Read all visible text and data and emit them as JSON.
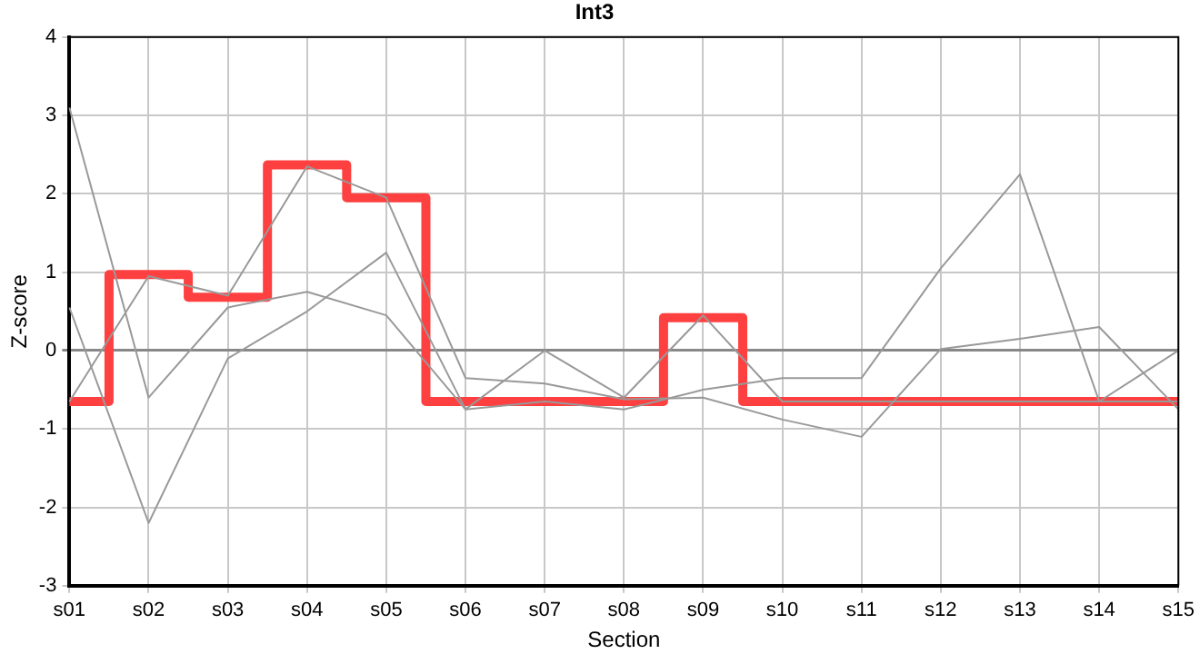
{
  "chart_data": {
    "type": "line",
    "title": "Int3",
    "xlabel": "Section",
    "ylabel": "Z-score",
    "categories": [
      "s01",
      "s02",
      "s03",
      "s04",
      "s05",
      "s06",
      "s07",
      "s08",
      "s09",
      "s10",
      "s11",
      "s12",
      "s13",
      "s14",
      "s15"
    ],
    "series": [
      {
        "color": "#999999",
        "values": [
          3.1,
          -0.6,
          0.55,
          0.75,
          0.45,
          -0.75,
          0.0,
          -0.6,
          0.45,
          -0.65,
          -0.65,
          -0.65,
          -0.65,
          -0.65,
          -0.65
        ]
      },
      {
        "color": "#999999",
        "values": [
          0.55,
          -2.2,
          -0.1,
          0.5,
          1.25,
          -0.75,
          -0.65,
          -0.75,
          -0.5,
          -0.35,
          -0.35,
          1.05,
          2.25,
          -0.65,
          0.0
        ]
      },
      {
        "color": "#999999",
        "values": [
          -0.65,
          0.95,
          0.7,
          2.35,
          1.95,
          -0.35,
          -0.42,
          -0.62,
          -0.6,
          -0.88,
          -1.1,
          0.02,
          0.15,
          0.3,
          -0.75
        ]
      },
      {
        "type": "step",
        "color": "#ff4040",
        "values": [
          -0.65,
          0.97,
          0.68,
          2.37,
          1.95,
          -0.65,
          -0.65,
          -0.65,
          0.42,
          -0.65,
          -0.65,
          -0.65,
          -0.65,
          -0.65,
          -0.65
        ]
      }
    ],
    "ylim": [
      -3,
      4
    ],
    "yticks": [
      -3,
      -2,
      -1,
      0,
      1,
      2,
      3,
      4
    ],
    "grid": true,
    "legend": false,
    "marker": "none"
  }
}
